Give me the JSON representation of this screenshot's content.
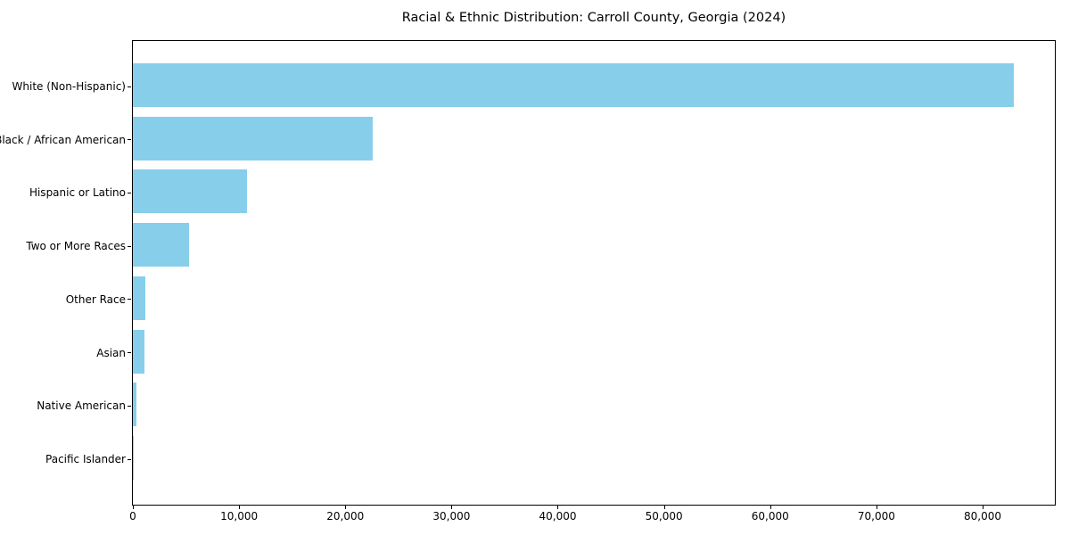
{
  "title": "Racial & Ethnic Distribution: Carroll County, Georgia (2024)",
  "chart_data": {
    "type": "bar",
    "orientation": "horizontal",
    "title": "Racial & Ethnic Distribution: Carroll County, Georgia (2024)",
    "xlabel": "",
    "ylabel": "",
    "categories": [
      "White (Non-Hispanic)",
      "Black / African American",
      "Hispanic or Latino",
      "Two or More Races",
      "Other Race",
      "Asian",
      "Native American",
      "Pacific Islander"
    ],
    "values": [
      82900,
      22600,
      10750,
      5300,
      1200,
      1050,
      310,
      60
    ],
    "xlim": [
      0,
      86800
    ],
    "xticks": [
      0,
      10000,
      20000,
      30000,
      40000,
      50000,
      60000,
      70000,
      80000
    ],
    "xtick_labels": [
      "0",
      "10,000",
      "20,000",
      "30,000",
      "40,000",
      "50,000",
      "60,000",
      "70,000",
      "80,000"
    ],
    "bar_color": "#87CEEB",
    "grid": false,
    "legend": null,
    "plot_border": "#000000",
    "background": "#ffffff"
  }
}
